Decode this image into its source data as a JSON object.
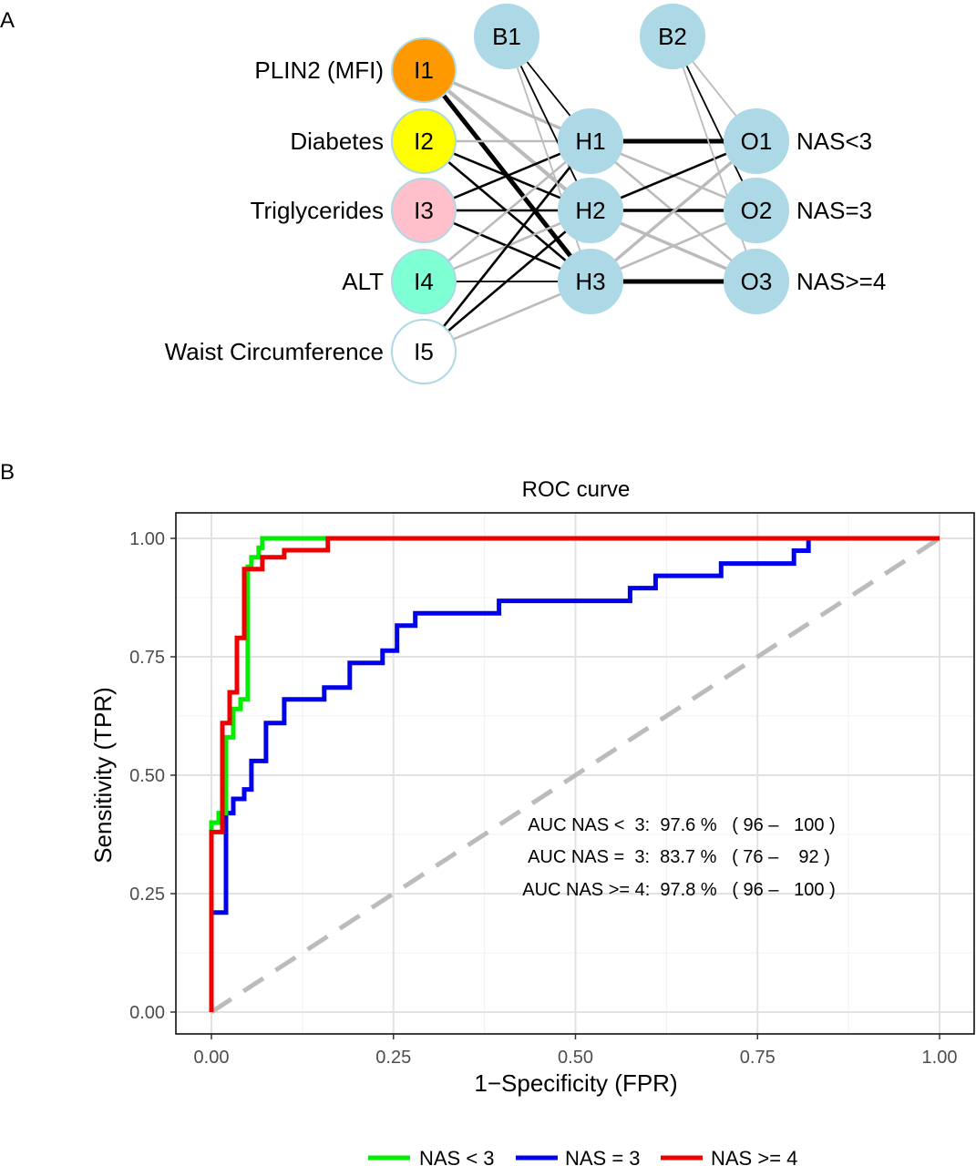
{
  "panels": {
    "a_label": "A",
    "b_label": "B"
  },
  "network": {
    "inputs": [
      {
        "id": "I1",
        "label": "PLIN2 (MFI)",
        "color": "#FF9900"
      },
      {
        "id": "I2",
        "label": "Diabetes",
        "color": "#FFFF00"
      },
      {
        "id": "I3",
        "label": "Triglycerides",
        "color": "#FFC0CB"
      },
      {
        "id": "I4",
        "label": "ALT",
        "color": "#7FFFD4"
      },
      {
        "id": "I5",
        "label": "Waist Circumference",
        "color": "#FFFFFF"
      }
    ],
    "biases": [
      {
        "id": "B1"
      },
      {
        "id": "B2"
      }
    ],
    "hidden": [
      {
        "id": "H1"
      },
      {
        "id": "H2"
      },
      {
        "id": "H3"
      }
    ],
    "outputs": [
      {
        "id": "O1",
        "label": "NAS<3"
      },
      {
        "id": "O2",
        "label": "NAS=3"
      },
      {
        "id": "O3",
        "label": "NAS>=4"
      }
    ],
    "node_color": "#ADD8E6",
    "positive_color": "#000000",
    "negative_color": "#BBBBBB",
    "connections": [
      {
        "from": "I1",
        "to": "H1",
        "sign": "neg",
        "weight": 3
      },
      {
        "from": "I1",
        "to": "H2",
        "sign": "neg",
        "weight": 4
      },
      {
        "from": "I1",
        "to": "H3",
        "sign": "pos",
        "weight": 5
      },
      {
        "from": "I2",
        "to": "H1",
        "sign": "neg",
        "weight": 2
      },
      {
        "from": "I2",
        "to": "H2",
        "sign": "pos",
        "weight": 2
      },
      {
        "from": "I2",
        "to": "H3",
        "sign": "pos",
        "weight": 2
      },
      {
        "from": "I3",
        "to": "H1",
        "sign": "pos",
        "weight": 2
      },
      {
        "from": "I3",
        "to": "H2",
        "sign": "pos",
        "weight": 2
      },
      {
        "from": "I3",
        "to": "H3",
        "sign": "pos",
        "weight": 2
      },
      {
        "from": "I4",
        "to": "H1",
        "sign": "neg",
        "weight": 2
      },
      {
        "from": "I4",
        "to": "H2",
        "sign": "neg",
        "weight": 2
      },
      {
        "from": "I4",
        "to": "H3",
        "sign": "pos",
        "weight": 1
      },
      {
        "from": "I5",
        "to": "H1",
        "sign": "pos",
        "weight": 2
      },
      {
        "from": "I5",
        "to": "H2",
        "sign": "pos",
        "weight": 2
      },
      {
        "from": "I5",
        "to": "H3",
        "sign": "neg",
        "weight": 2
      },
      {
        "from": "B1",
        "to": "H1",
        "sign": "pos",
        "weight": 1
      },
      {
        "from": "B1",
        "to": "H2",
        "sign": "pos",
        "weight": 1
      },
      {
        "from": "B1",
        "to": "H3",
        "sign": "neg",
        "weight": 1
      },
      {
        "from": "H1",
        "to": "O1",
        "sign": "pos",
        "weight": 5
      },
      {
        "from": "H1",
        "to": "O2",
        "sign": "neg",
        "weight": 2
      },
      {
        "from": "H1",
        "to": "O3",
        "sign": "neg",
        "weight": 2
      },
      {
        "from": "H2",
        "to": "O1",
        "sign": "pos",
        "weight": 2
      },
      {
        "from": "H2",
        "to": "O2",
        "sign": "pos",
        "weight": 3
      },
      {
        "from": "H2",
        "to": "O3",
        "sign": "neg",
        "weight": 3
      },
      {
        "from": "H3",
        "to": "O1",
        "sign": "neg",
        "weight": 3
      },
      {
        "from": "H3",
        "to": "O2",
        "sign": "neg",
        "weight": 2
      },
      {
        "from": "H3",
        "to": "O3",
        "sign": "pos",
        "weight": 5
      },
      {
        "from": "B2",
        "to": "O1",
        "sign": "neg",
        "weight": 1
      },
      {
        "from": "B2",
        "to": "O2",
        "sign": "pos",
        "weight": 1
      },
      {
        "from": "B2",
        "to": "O3",
        "sign": "neg",
        "weight": 1
      }
    ]
  },
  "chart_data": {
    "type": "line",
    "title": "ROC curve",
    "xlabel": "1−Specificity (FPR)",
    "ylabel": "Sensitivity (TPR)",
    "xlim": [
      0,
      1
    ],
    "ylim": [
      0,
      1
    ],
    "xticks": [
      0,
      0.25,
      0.5,
      0.75,
      1
    ],
    "yticks": [
      0,
      0.25,
      0.5,
      0.75,
      1
    ],
    "xtick_labels": [
      "0.00",
      "0.25",
      "0.50",
      "0.75",
      "1.00"
    ],
    "ytick_labels": [
      "0.00",
      "0.25",
      "0.50",
      "0.75",
      "1.00"
    ],
    "grid": true,
    "legend": "bottom",
    "series": [
      {
        "name": "NAS < 3",
        "color": "#00EE00",
        "points": [
          [
            0,
            0
          ],
          [
            0,
            0.4
          ],
          [
            0.01,
            0.4
          ],
          [
            0.01,
            0.42
          ],
          [
            0.02,
            0.42
          ],
          [
            0.02,
            0.58
          ],
          [
            0.03,
            0.58
          ],
          [
            0.03,
            0.64
          ],
          [
            0.04,
            0.64
          ],
          [
            0.04,
            0.66
          ],
          [
            0.05,
            0.66
          ],
          [
            0.05,
            0.94
          ],
          [
            0.055,
            0.94
          ],
          [
            0.055,
            0.96
          ],
          [
            0.065,
            0.96
          ],
          [
            0.065,
            0.98
          ],
          [
            0.07,
            0.98
          ],
          [
            0.07,
            1.0
          ],
          [
            1,
            1
          ]
        ]
      },
      {
        "name": "NAS = 3",
        "color": "#0000EE",
        "points": [
          [
            0,
            0
          ],
          [
            0,
            0.21
          ],
          [
            0.02,
            0.21
          ],
          [
            0.02,
            0.42
          ],
          [
            0.03,
            0.42
          ],
          [
            0.03,
            0.45
          ],
          [
            0.045,
            0.45
          ],
          [
            0.045,
            0.47
          ],
          [
            0.055,
            0.47
          ],
          [
            0.055,
            0.53
          ],
          [
            0.075,
            0.53
          ],
          [
            0.075,
            0.61
          ],
          [
            0.1,
            0.61
          ],
          [
            0.1,
            0.66
          ],
          [
            0.155,
            0.66
          ],
          [
            0.155,
            0.685
          ],
          [
            0.19,
            0.685
          ],
          [
            0.19,
            0.737
          ],
          [
            0.235,
            0.737
          ],
          [
            0.235,
            0.763
          ],
          [
            0.255,
            0.763
          ],
          [
            0.255,
            0.816
          ],
          [
            0.28,
            0.816
          ],
          [
            0.28,
            0.842
          ],
          [
            0.395,
            0.842
          ],
          [
            0.395,
            0.868
          ],
          [
            0.575,
            0.868
          ],
          [
            0.575,
            0.895
          ],
          [
            0.61,
            0.895
          ],
          [
            0.61,
            0.921
          ],
          [
            0.7,
            0.921
          ],
          [
            0.7,
            0.947
          ],
          [
            0.8,
            0.947
          ],
          [
            0.8,
            0.974
          ],
          [
            0.82,
            0.974
          ],
          [
            0.82,
            1.0
          ],
          [
            1,
            1
          ]
        ]
      },
      {
        "name": "NAS >= 4",
        "color": "#EE0000",
        "points": [
          [
            0,
            0
          ],
          [
            0,
            0.38
          ],
          [
            0.015,
            0.38
          ],
          [
            0.015,
            0.61
          ],
          [
            0.025,
            0.61
          ],
          [
            0.025,
            0.675
          ],
          [
            0.035,
            0.675
          ],
          [
            0.035,
            0.79
          ],
          [
            0.045,
            0.79
          ],
          [
            0.045,
            0.935
          ],
          [
            0.07,
            0.935
          ],
          [
            0.07,
            0.96
          ],
          [
            0.1,
            0.96
          ],
          [
            0.1,
            0.975
          ],
          [
            0.16,
            0.975
          ],
          [
            0.16,
            1.0
          ],
          [
            1,
            1
          ]
        ]
      },
      {
        "name": "",
        "role": "chance-line",
        "color": "#BBBBBB",
        "points": [
          [
            0,
            0
          ],
          [
            1,
            1
          ]
        ]
      }
    ],
    "annotations": [
      "AUC NAS <  3:  97.6 %   ( 96 –   100 )",
      "AUC NAS =  3:  83.7 %   ( 76 –    92 )",
      "AUC NAS >= 4:  97.8 %   ( 96 –   100 )"
    ]
  }
}
